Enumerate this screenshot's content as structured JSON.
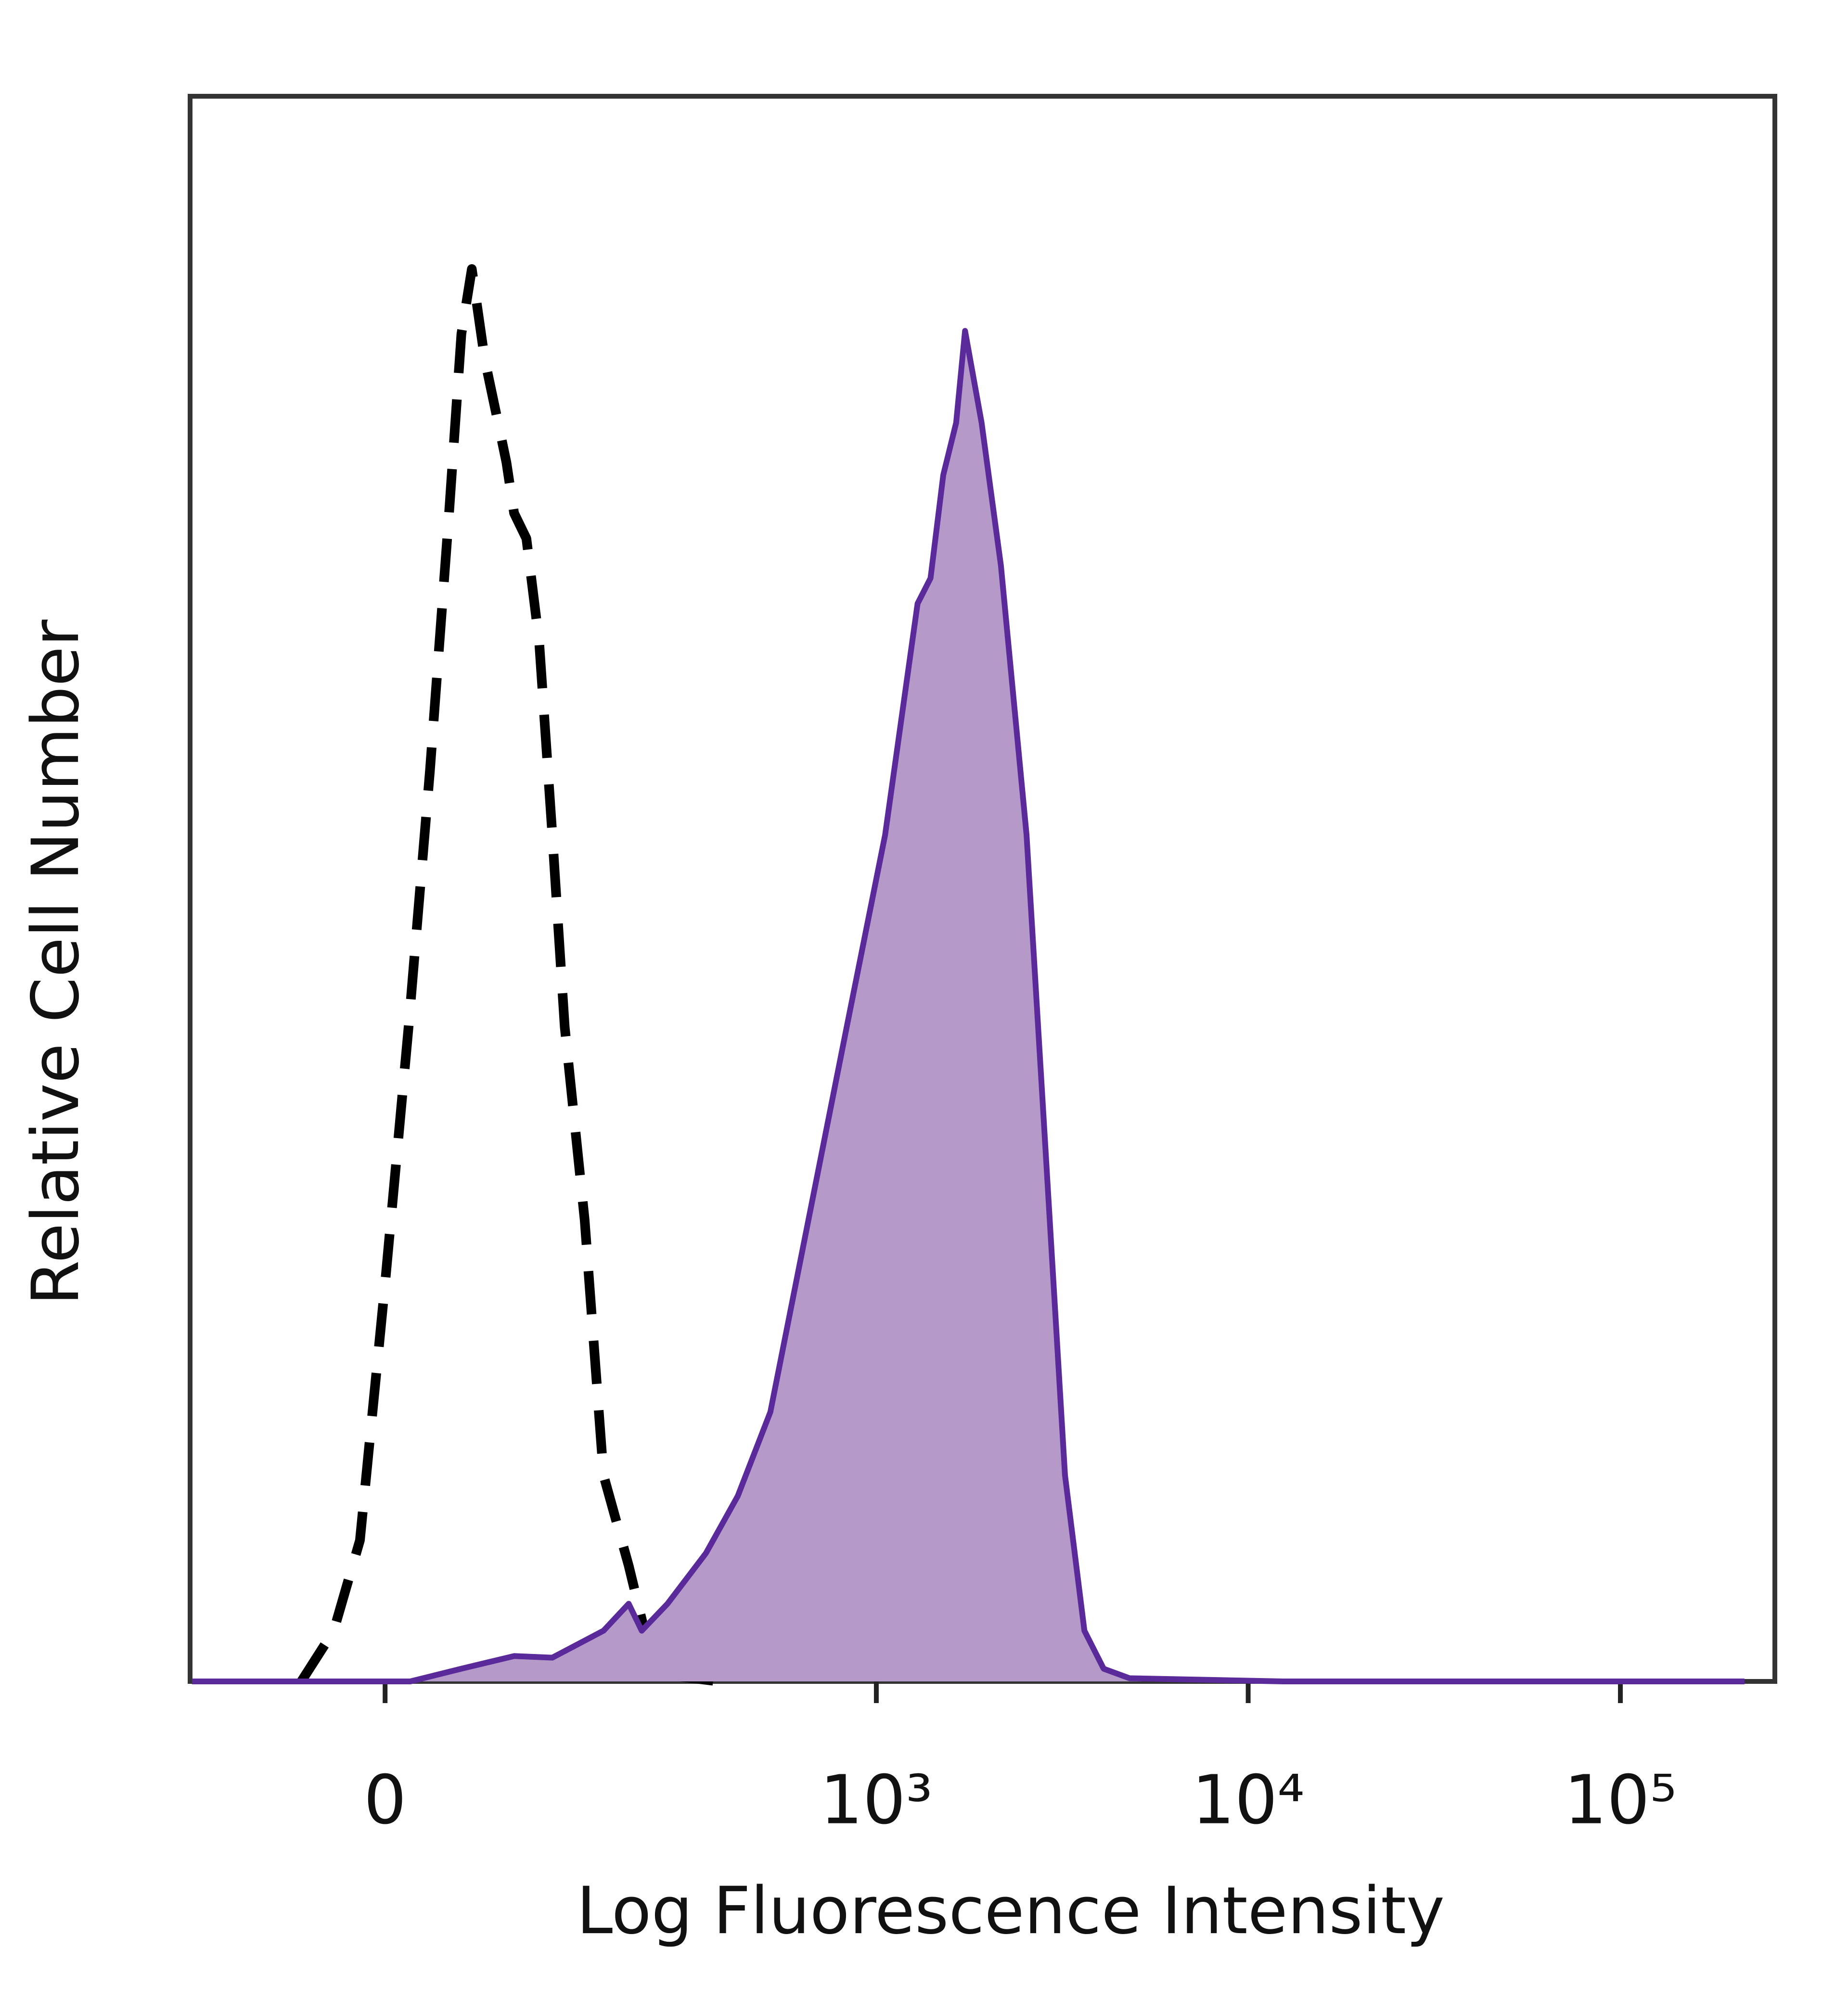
{
  "chart_data": {
    "type": "histogram-overlay",
    "xlabel": "Log Fluorescence Intensity",
    "ylabel": "Relative Cell Number",
    "xscale": "biexponential",
    "xlim": [
      -146,
      260000
    ],
    "ylim": [
      0,
      100
    ],
    "xticks": [
      0,
      {
        "value": 1000,
        "label": "10³"
      },
      {
        "value": 10000,
        "label": "10⁴"
      },
      {
        "value": 100000,
        "label": "10⁵"
      }
    ],
    "series": [
      {
        "color": "#000000",
        "dashed": true,
        "x": [
          -52,
          -31,
          -15,
          0,
          14,
          27,
          39,
          47,
          54,
          63,
          75,
          79,
          85,
          95,
          106,
          118,
          130,
          151,
          173,
          206,
          234,
          267,
          372
        ],
        "values": [
          0,
          3.2,
          8.9,
          25.1,
          41.3,
          57.5,
          73.7,
          85,
          89.1,
          83.4,
          78.5,
          76.9,
          73.7,
          72.1,
          65.6,
          53.4,
          41.3,
          29.1,
          13,
          7.3,
          2.4,
          0.4,
          0
        ]
      },
      {
        "color": "#5b2a9a",
        "fill": "#b59ac9",
        "x": [
          -144,
          15,
          47,
          85,
          118,
          173,
          206,
          225,
          267,
          343,
          420,
          516,
          655,
          832,
          1056,
          1292,
          1400,
          1515,
          1641,
          1734,
          1921,
          2165,
          2538,
          2860,
          3220,
          3630,
          4090,
          4800,
          12400,
          215500
        ],
        "values": [
          0,
          0,
          0.8,
          1.6,
          1.5,
          3.2,
          4.9,
          3.2,
          4.9,
          8.1,
          11.7,
          17,
          29.1,
          41.3,
          53.4,
          68,
          69.6,
          76.1,
          79.4,
          85.2,
          79.4,
          70.4,
          53.4,
          33.2,
          13,
          3.2,
          0.8,
          0.2,
          0,
          0
        ]
      }
    ]
  }
}
